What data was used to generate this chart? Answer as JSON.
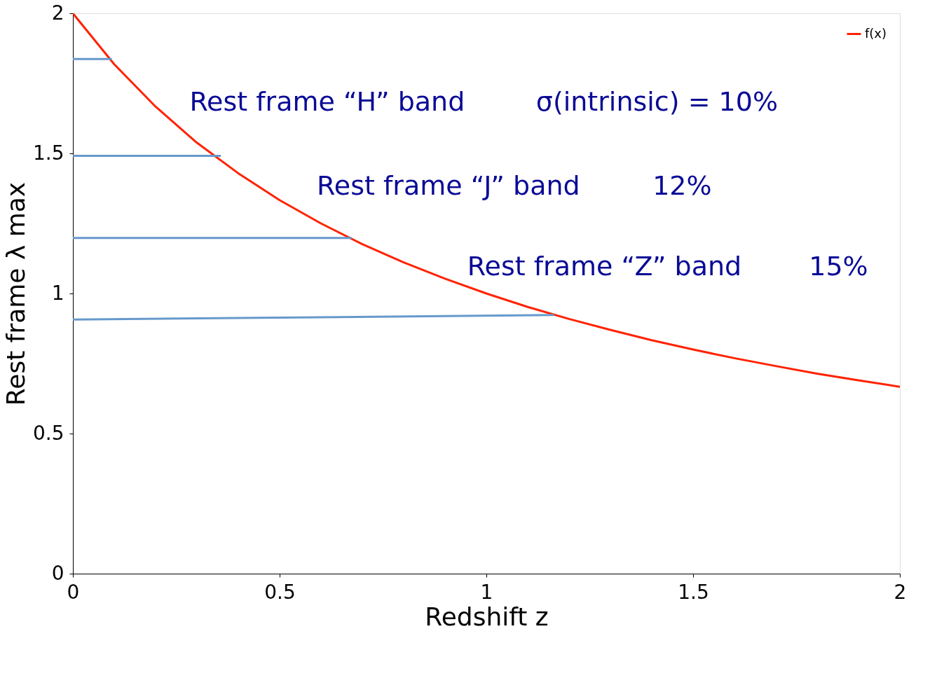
{
  "chart_data": {
    "type": "line",
    "xlabel": "Redshift z",
    "ylabel": "Rest frame λ max",
    "xlim": [
      0,
      2
    ],
    "ylim": [
      0,
      2
    ],
    "xticks": [
      0,
      0.5,
      1,
      1.5,
      2
    ],
    "yticks": [
      0,
      0.5,
      1,
      1.5,
      2
    ],
    "grid": false,
    "legend": "top right",
    "series": [
      {
        "name": "f(x)",
        "color": "#ff2200",
        "x": [
          0,
          0.1,
          0.2,
          0.3,
          0.4,
          0.5,
          0.6,
          0.7,
          0.8,
          0.9,
          1,
          1.1,
          1.2,
          1.3,
          1.4,
          1.5,
          1.6,
          1.7,
          1.8,
          1.9,
          2
        ],
        "values": [
          2,
          1.818,
          1.667,
          1.538,
          1.429,
          1.333,
          1.25,
          1.176,
          1.111,
          1.053,
          1,
          0.952,
          0.909,
          0.87,
          0.833,
          0.8,
          0.769,
          0.741,
          0.714,
          0.69,
          0.667
        ]
      },
      {
        "color": "#6699cc",
        "x": [
          0,
          0.094
        ],
        "values": [
          1.837,
          1.837
        ]
      },
      {
        "color": "#6699cc",
        "x": [
          0,
          0.358
        ],
        "values": [
          1.491,
          1.491
        ]
      },
      {
        "color": "#6699cc",
        "x": [
          0,
          0.674
        ],
        "values": [
          1.198,
          1.198
        ]
      },
      {
        "color": "#6699cc",
        "x": [
          0,
          1.164
        ],
        "values": [
          0.907,
          0.923
        ]
      }
    ],
    "annotations": [
      "Rest frame “H” band",
      "σ(intrinsic) = 10%",
      "Rest frame “J” band",
      "12%",
      "Rest frame “Z” band",
      "15%"
    ]
  }
}
